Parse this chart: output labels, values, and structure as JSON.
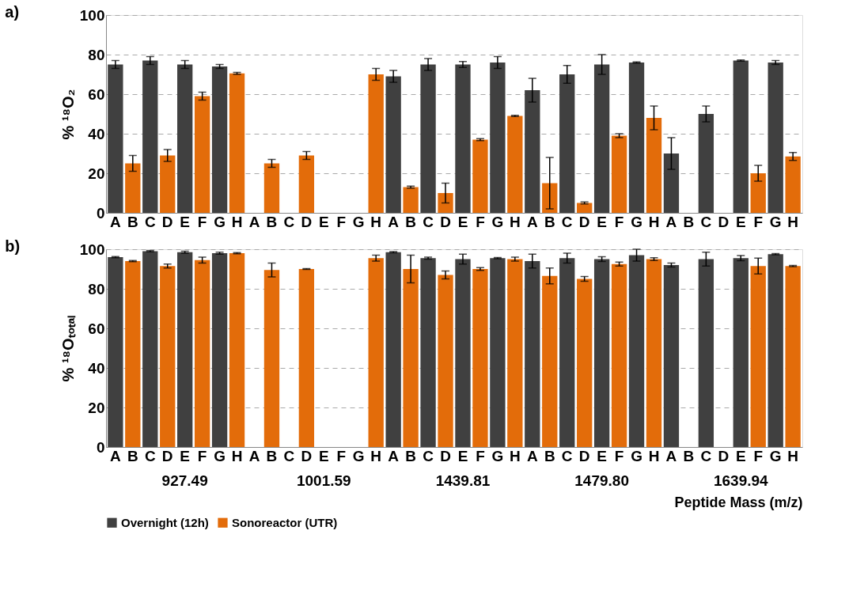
{
  "chart_data": [
    {
      "type": "bar",
      "title": "a)",
      "ylabel": "% ¹⁸O₂",
      "categories": [
        "A",
        "B",
        "C",
        "D",
        "E",
        "F",
        "G",
        "H",
        "A",
        "B",
        "C",
        "D",
        "E",
        "F",
        "G",
        "H",
        "A",
        "B",
        "C",
        "D",
        "E",
        "F",
        "G",
        "H",
        "A",
        "B",
        "C",
        "D",
        "E",
        "F",
        "G",
        "H",
        "A",
        "B",
        "C",
        "D",
        "E",
        "F",
        "G",
        "H"
      ],
      "ylim": [
        0,
        100
      ],
      "yticks": [
        0,
        20,
        40,
        60,
        80,
        100
      ],
      "grid": "y",
      "legend": "bottom",
      "series": [
        {
          "name": "Overnight (12h)",
          "color": "#404040",
          "values": [
            75,
            null,
            77,
            null,
            75,
            null,
            74,
            null,
            null,
            null,
            null,
            null,
            null,
            null,
            null,
            null,
            69,
            null,
            75,
            null,
            75,
            null,
            76,
            null,
            62,
            null,
            70,
            null,
            75,
            null,
            76,
            null,
            30,
            null,
            50,
            null,
            77,
            null,
            76,
            null
          ],
          "errors": [
            2,
            null,
            2,
            null,
            2,
            null,
            1,
            null,
            null,
            null,
            null,
            null,
            null,
            null,
            null,
            null,
            3,
            null,
            3,
            null,
            1.5,
            null,
            3,
            null,
            6,
            null,
            4.5,
            null,
            5,
            null,
            0.3,
            null,
            8,
            null,
            4,
            null,
            0.3,
            null,
            1,
            null
          ]
        },
        {
          "name": "Sonoreactor (UTR)",
          "color": "#e36c0a",
          "values": [
            null,
            25,
            null,
            29,
            null,
            59,
            null,
            70.5,
            null,
            25,
            null,
            29,
            null,
            null,
            null,
            70,
            null,
            13,
            null,
            10,
            null,
            37,
            null,
            49,
            null,
            15,
            null,
            5,
            null,
            39,
            null,
            48,
            null,
            null,
            null,
            null,
            null,
            20,
            null,
            28.5
          ],
          "errors": [
            null,
            4,
            null,
            3,
            null,
            2,
            null,
            0.5,
            null,
            2,
            null,
            2,
            null,
            null,
            null,
            3,
            null,
            0.5,
            null,
            5,
            null,
            0.5,
            null,
            0.3,
            null,
            13,
            null,
            0.5,
            null,
            1,
            null,
            6,
            null,
            null,
            null,
            null,
            null,
            4,
            null,
            2
          ]
        }
      ]
    },
    {
      "type": "bar",
      "title": "b)",
      "ylabel": "% ¹⁸Oₜₒₜₐₗ",
      "xlabel": "Peptide Mass (m/z)",
      "categories": [
        "A",
        "B",
        "C",
        "D",
        "E",
        "F",
        "G",
        "H",
        "A",
        "B",
        "C",
        "D",
        "E",
        "F",
        "G",
        "H",
        "A",
        "B",
        "C",
        "D",
        "E",
        "F",
        "G",
        "H",
        "A",
        "B",
        "C",
        "D",
        "E",
        "F",
        "G",
        "H",
        "A",
        "B",
        "C",
        "D",
        "E",
        "F",
        "G",
        "H"
      ],
      "ylim": [
        0,
        100
      ],
      "yticks": [
        0,
        20,
        40,
        60,
        80,
        100
      ],
      "grid": "y",
      "legend": "bottom",
      "annotations": [
        "927.49",
        "1001.59",
        "1439.81",
        "1479.80",
        "1639.94"
      ],
      "series": [
        {
          "name": "Overnight (12h)",
          "color": "#404040",
          "values": [
            96,
            null,
            99,
            null,
            98.5,
            null,
            98,
            null,
            null,
            null,
            null,
            null,
            null,
            null,
            null,
            null,
            98.5,
            null,
            95.5,
            null,
            95,
            null,
            95.5,
            null,
            94,
            null,
            95.5,
            null,
            95,
            null,
            97,
            null,
            92,
            null,
            95,
            null,
            95.5,
            null,
            97.5,
            null
          ],
          "errors": [
            0.3,
            null,
            0.3,
            null,
            0.5,
            null,
            0.5,
            null,
            null,
            null,
            null,
            null,
            null,
            null,
            null,
            null,
            0.3,
            null,
            0.5,
            null,
            2.5,
            null,
            0.3,
            null,
            3.5,
            null,
            2.5,
            null,
            1.2,
            null,
            3,
            null,
            1,
            null,
            3.5,
            null,
            1.3,
            null,
            0.3,
            null
          ]
        },
        {
          "name": "Sonoreactor (UTR)",
          "color": "#e36c0a",
          "values": [
            null,
            94,
            null,
            91.5,
            null,
            94.5,
            null,
            98,
            null,
            89.5,
            null,
            90,
            null,
            null,
            null,
            95.5,
            null,
            90,
            null,
            87,
            null,
            90,
            null,
            95,
            null,
            86.5,
            null,
            85,
            null,
            92.5,
            null,
            95,
            null,
            null,
            null,
            null,
            null,
            91.5,
            null,
            91.5
          ],
          "errors": [
            null,
            0.3,
            null,
            1,
            null,
            1.5,
            null,
            0.3,
            null,
            3.5,
            null,
            0.2,
            null,
            null,
            null,
            1.5,
            null,
            7,
            null,
            2,
            null,
            0.7,
            null,
            1,
            null,
            4,
            null,
            1.2,
            null,
            1,
            null,
            0.7,
            null,
            null,
            null,
            null,
            null,
            4,
            null,
            0.3
          ]
        }
      ]
    }
  ]
}
